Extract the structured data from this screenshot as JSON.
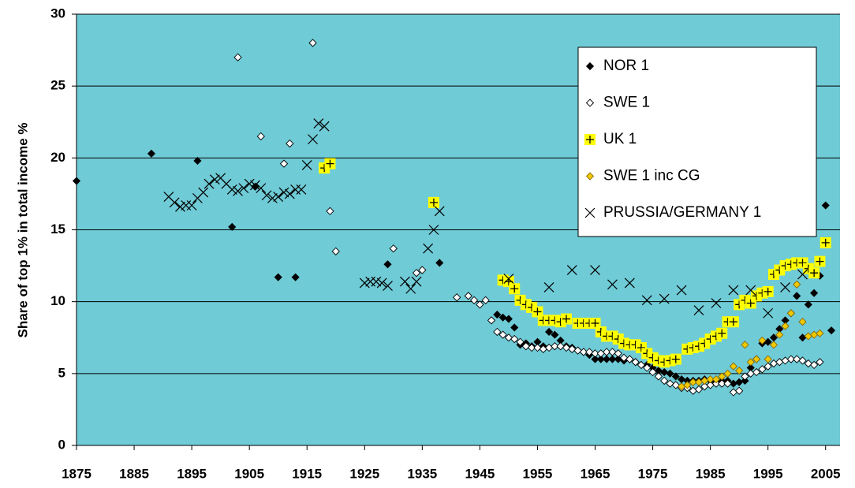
{
  "chart_data": {
    "type": "scatter",
    "y_label": "Share of top 1% in total income %",
    "xlim": [
      1875,
      2007.5
    ],
    "ylim": [
      0,
      30
    ],
    "xticks": [
      1875,
      1885,
      1895,
      1905,
      1915,
      1925,
      1935,
      1945,
      1955,
      1965,
      1975,
      1985,
      1995,
      2005
    ],
    "yticks": [
      0,
      5,
      10,
      15,
      20,
      25,
      30
    ],
    "grid": true,
    "background": "#6fcbd6",
    "legend": "upper right",
    "series": [
      {
        "name": "NOR 1",
        "color": "#000000",
        "marker": "diamond",
        "x": [
          1875,
          1888,
          1896,
          1902,
          1906,
          1910,
          1913,
          1929,
          1938,
          1948,
          1949,
          1950,
          1951,
          1952,
          1953,
          1954,
          1955,
          1956,
          1957,
          1958,
          1959,
          1960,
          1961,
          1962,
          1963,
          1964,
          1965,
          1966,
          1967,
          1968,
          1969,
          1970,
          1971,
          1972,
          1973,
          1974,
          1975,
          1976,
          1977,
          1978,
          1979,
          1980,
          1981,
          1982,
          1983,
          1984,
          1985,
          1986,
          1987,
          1988,
          1989,
          1990,
          1991,
          1992,
          1993,
          1994,
          1995,
          1996,
          1997,
          1998,
          1999,
          2000,
          2001,
          2002,
          2003,
          2004,
          2005,
          2006
        ],
        "values": [
          18.4,
          20.3,
          19.8,
          15.2,
          18.0,
          11.7,
          11.7,
          12.6,
          12.7,
          9.1,
          8.9,
          8.8,
          8.2,
          7.0,
          7.1,
          6.9,
          7.2,
          6.9,
          7.9,
          7.7,
          7.3,
          6.9,
          6.8,
          6.6,
          6.5,
          6.3,
          6.0,
          6.0,
          6.0,
          6.0,
          6.0,
          5.9,
          6.0,
          5.8,
          5.6,
          5.6,
          5.4,
          5.2,
          5.1,
          5.0,
          4.8,
          4.6,
          4.5,
          4.5,
          4.5,
          4.6,
          4.5,
          4.4,
          4.5,
          4.5,
          4.3,
          4.4,
          4.5,
          5.4,
          6.0,
          7.1,
          7.2,
          7.5,
          8.1,
          8.7,
          9.2,
          10.4,
          7.5,
          9.8,
          10.6,
          11.8,
          16.7,
          8.0
        ]
      },
      {
        "name": "SWE 1",
        "color": "#000000",
        "marker": "diamond-open",
        "x": [
          1903,
          1907,
          1911,
          1912,
          1916,
          1919,
          1920,
          1930,
          1934,
          1935,
          1941,
          1943,
          1944,
          1945,
          1946,
          1947,
          1948,
          1949,
          1950,
          1951,
          1952,
          1953,
          1954,
          1955,
          1956,
          1957,
          1958,
          1959,
          1960,
          1961,
          1962,
          1963,
          1964,
          1965,
          1966,
          1967,
          1968,
          1969,
          1970,
          1971,
          1972,
          1973,
          1974,
          1975,
          1976,
          1977,
          1978,
          1979,
          1980,
          1981,
          1982,
          1983,
          1984,
          1985,
          1986,
          1987,
          1988,
          1989,
          1990,
          1991,
          1992,
          1993,
          1994,
          1995,
          1996,
          1997,
          1998,
          1999,
          2000,
          2001,
          2002,
          2003,
          2004
        ],
        "values": [
          27.0,
          21.5,
          19.6,
          21.0,
          28.0,
          16.3,
          13.5,
          13.7,
          12.0,
          12.2,
          10.3,
          10.4,
          10.1,
          9.8,
          10.1,
          8.7,
          7.9,
          7.7,
          7.5,
          7.4,
          7.2,
          6.9,
          6.8,
          6.8,
          6.7,
          6.8,
          6.9,
          6.9,
          6.8,
          6.7,
          6.6,
          6.5,
          6.5,
          6.4,
          6.4,
          6.5,
          6.5,
          6.4,
          6.1,
          6.0,
          5.8,
          5.6,
          5.4,
          5.1,
          4.8,
          4.5,
          4.3,
          4.2,
          4.0,
          4.0,
          3.8,
          3.9,
          4.1,
          4.2,
          4.3,
          4.3,
          4.3,
          3.7,
          3.8,
          4.8,
          5.0,
          5.1,
          5.3,
          5.5,
          5.7,
          5.8,
          5.9,
          6.0,
          6.0,
          5.9,
          5.7,
          5.6,
          5.8
        ]
      },
      {
        "name": "UK 1",
        "color": "#ffff00",
        "marker": "plus-square",
        "x": [
          1918,
          1919,
          1937,
          1949,
          1950,
          1951,
          1952,
          1953,
          1954,
          1955,
          1956,
          1957,
          1958,
          1959,
          1960,
          1962,
          1963,
          1964,
          1965,
          1966,
          1967,
          1968,
          1969,
          1970,
          1971,
          1972,
          1973,
          1974,
          1975,
          1976,
          1977,
          1978,
          1979,
          1981,
          1982,
          1983,
          1984,
          1985,
          1986,
          1987,
          1988,
          1989,
          1990,
          1991,
          1992,
          1993,
          1994,
          1995,
          1996,
          1997,
          1998,
          1999,
          2000,
          2001,
          2002,
          2003,
          2004,
          2005
        ],
        "values": [
          19.3,
          19.6,
          16.9,
          11.5,
          11.4,
          10.9,
          10.1,
          9.8,
          9.6,
          9.3,
          8.7,
          8.7,
          8.7,
          8.6,
          8.8,
          8.5,
          8.5,
          8.5,
          8.5,
          7.9,
          7.6,
          7.6,
          7.4,
          7.1,
          7.0,
          7.0,
          6.8,
          6.4,
          6.1,
          5.9,
          5.8,
          5.9,
          6.0,
          6.7,
          6.8,
          6.9,
          7.1,
          7.4,
          7.6,
          7.8,
          8.6,
          8.6,
          9.8,
          10.1,
          9.9,
          10.4,
          10.6,
          10.7,
          11.9,
          12.2,
          12.5,
          12.6,
          12.7,
          12.7,
          12.3,
          12.0,
          12.8,
          14.1
        ]
      },
      {
        "name": "SWE 1 inc CG",
        "color": "#f0c800",
        "marker": "diamond",
        "x": [
          1980,
          1981,
          1982,
          1983,
          1984,
          1985,
          1986,
          1987,
          1988,
          1989,
          1990,
          1991,
          1992,
          1993,
          1994,
          1995,
          1996,
          1997,
          1998,
          1999,
          2000,
          2001,
          2002,
          2003,
          2004
        ],
        "values": [
          4.1,
          4.2,
          4.4,
          4.4,
          4.5,
          4.6,
          4.6,
          4.8,
          5.0,
          5.5,
          5.2,
          7.0,
          5.8,
          6.0,
          7.3,
          6.0,
          7.0,
          7.7,
          8.3,
          9.2,
          11.2,
          8.6,
          7.6,
          7.7,
          7.8
        ]
      },
      {
        "name": "PRUSSIA/GERMANY 1",
        "color": "#000000",
        "marker": "x",
        "x": [
          1891,
          1892,
          1893,
          1894,
          1895,
          1896,
          1897,
          1898,
          1899,
          1900,
          1901,
          1902,
          1903,
          1904,
          1905,
          1906,
          1907,
          1908,
          1909,
          1910,
          1911,
          1912,
          1913,
          1914,
          1915,
          1916,
          1917,
          1918,
          1925,
          1926,
          1927,
          1928,
          1929,
          1932,
          1933,
          1934,
          1936,
          1937,
          1938,
          1950,
          1957,
          1961,
          1965,
          1968,
          1971,
          1974,
          1977,
          1980,
          1983,
          1986,
          1989,
          1992,
          1995,
          1998,
          2001
        ],
        "values": [
          17.3,
          16.9,
          16.6,
          16.7,
          16.7,
          17.2,
          17.6,
          18.2,
          18.5,
          18.6,
          18.2,
          17.8,
          17.7,
          17.9,
          18.2,
          18.1,
          17.9,
          17.4,
          17.2,
          17.3,
          17.6,
          17.5,
          17.8,
          17.8,
          19.5,
          21.3,
          22.4,
          22.2,
          11.3,
          11.4,
          11.4,
          11.3,
          11.1,
          11.4,
          10.9,
          11.4,
          13.7,
          15.0,
          16.3,
          11.6,
          11.0,
          12.2,
          12.2,
          11.2,
          11.3,
          10.1,
          10.2,
          10.8,
          9.4,
          9.9,
          10.8,
          10.8,
          9.2,
          11.0,
          11.9
        ]
      }
    ]
  }
}
